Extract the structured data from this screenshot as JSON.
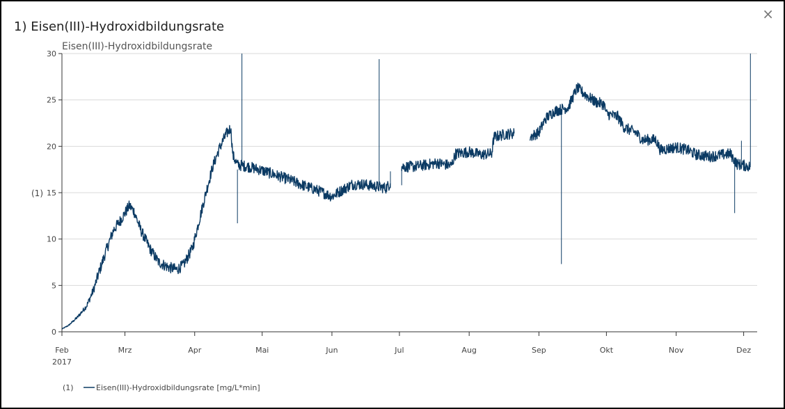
{
  "header": {
    "title": "1) Eisen(III)-Hydroxidbildungsrate",
    "close_glyph": "×"
  },
  "colors": {
    "series": "#0b3a63",
    "grid": "#d9d9d9",
    "axis": "#333333",
    "text": "#444444"
  },
  "chart_data": {
    "type": "line",
    "title": "Eisen(III)-Hydroxidbildungsrate",
    "ylabel": "(1)",
    "ylim": [
      0,
      30
    ],
    "yticks": [
      0,
      5,
      10,
      15,
      20,
      25,
      30
    ],
    "xlim": [
      "2017-02-01",
      "2017-12-07"
    ],
    "xticks": [
      {
        "date": "2017-02-01",
        "label": "Feb",
        "sublabel": "2017"
      },
      {
        "date": "2017-03-01",
        "label": "Mrz"
      },
      {
        "date": "2017-04-01",
        "label": "Apr"
      },
      {
        "date": "2017-05-01",
        "label": "Mai"
      },
      {
        "date": "2017-06-01",
        "label": "Jun"
      },
      {
        "date": "2017-07-01",
        "label": "Jul"
      },
      {
        "date": "2017-08-01",
        "label": "Aug"
      },
      {
        "date": "2017-09-01",
        "label": "Sep"
      },
      {
        "date": "2017-10-01",
        "label": "Okt"
      },
      {
        "date": "2017-11-01",
        "label": "Nov"
      },
      {
        "date": "2017-12-01",
        "label": "Dez"
      }
    ],
    "grid": true,
    "legend": {
      "position": "bottom-left",
      "axis_label": "(1)",
      "entry": "Eisen(III)-Hydroxidbildungsrate [mg/L*min]"
    },
    "series": [
      {
        "name": "Eisen(III)-Hydroxidbildungsrate [mg/L*min]",
        "noise": 0.6,
        "segments": [
          [
            [
              "2017-02-01",
              0.3
            ],
            [
              "2017-02-04",
              0.7
            ],
            [
              "2017-02-08",
              1.6
            ],
            [
              "2017-02-12",
              2.8
            ],
            [
              "2017-02-15",
              4.5
            ],
            [
              "2017-02-18",
              6.8
            ],
            [
              "2017-02-21",
              9.0
            ],
            [
              "2017-02-24",
              11.0
            ],
            [
              "2017-02-27",
              12.0
            ],
            [
              "2017-03-02",
              13.2
            ],
            [
              "2017-03-03",
              13.6
            ],
            [
              "2017-03-05",
              13.0
            ],
            [
              "2017-03-08",
              11.0
            ],
            [
              "2017-03-12",
              9.0
            ],
            [
              "2017-03-16",
              7.5
            ],
            [
              "2017-03-20",
              7.0
            ],
            [
              "2017-03-24",
              6.7
            ],
            [
              "2017-03-27",
              7.2
            ],
            [
              "2017-03-31",
              9.0
            ],
            [
              "2017-04-03",
              12.0
            ],
            [
              "2017-04-06",
              15.0
            ],
            [
              "2017-04-09",
              17.8
            ],
            [
              "2017-04-12",
              19.8
            ],
            [
              "2017-04-15",
              21.3
            ],
            [
              "2017-04-17",
              22.0
            ],
            [
              "2017-04-18",
              19.0
            ],
            [
              "2017-04-20",
              18.0
            ],
            [
              "2017-04-25",
              17.8
            ],
            [
              "2017-05-01",
              17.4
            ],
            [
              "2017-05-07",
              16.9
            ],
            [
              "2017-05-13",
              16.4
            ],
            [
              "2017-05-18",
              15.9
            ],
            [
              "2017-05-25",
              15.3
            ],
            [
              "2017-06-01",
              14.6
            ],
            [
              "2017-06-05",
              15.2
            ],
            [
              "2017-06-10",
              15.9
            ],
            [
              "2017-06-15",
              15.9
            ],
            [
              "2017-06-20",
              15.7
            ],
            [
              "2017-06-25",
              15.5
            ],
            [
              "2017-06-27",
              16.0
            ]
          ],
          [
            [
              "2017-07-02",
              17.8
            ],
            [
              "2017-07-07",
              17.8
            ],
            [
              "2017-07-13",
              18.0
            ],
            [
              "2017-07-18",
              18.2
            ],
            [
              "2017-07-24",
              17.9
            ],
            [
              "2017-07-26",
              19.2
            ],
            [
              "2017-08-01",
              19.4
            ],
            [
              "2017-08-06",
              19.1
            ],
            [
              "2017-08-11",
              19.2
            ],
            [
              "2017-08-12",
              21.0
            ],
            [
              "2017-08-17",
              21.3
            ],
            [
              "2017-08-21",
              21.4
            ]
          ],
          [
            [
              "2017-08-28",
              21.0
            ],
            [
              "2017-09-01",
              21.5
            ],
            [
              "2017-09-04",
              23.0
            ],
            [
              "2017-09-08",
              23.8
            ],
            [
              "2017-09-14",
              24.2
            ],
            [
              "2017-09-18",
              26.3
            ],
            [
              "2017-09-22",
              25.5
            ],
            [
              "2017-09-26",
              24.8
            ],
            [
              "2017-09-30",
              24.5
            ],
            [
              "2017-10-01",
              23.5
            ],
            [
              "2017-10-06",
              23.2
            ],
            [
              "2017-10-09",
              22.0
            ],
            [
              "2017-10-14",
              21.5
            ],
            [
              "2017-10-17",
              20.7
            ],
            [
              "2017-10-23",
              20.7
            ],
            [
              "2017-10-25",
              19.6
            ],
            [
              "2017-11-01",
              19.9
            ],
            [
              "2017-11-06",
              19.6
            ],
            [
              "2017-11-10",
              19.1
            ],
            [
              "2017-11-16",
              18.9
            ],
            [
              "2017-11-22",
              19.1
            ],
            [
              "2017-11-25",
              19.2
            ],
            [
              "2017-11-28",
              18.1
            ],
            [
              "2017-12-04",
              17.8
            ]
          ]
        ],
        "spikes": [
          {
            "date": "2017-04-22",
            "from": 18.0,
            "to": 30.0
          },
          {
            "date": "2017-04-20",
            "from": 17.5,
            "to": 11.7
          },
          {
            "date": "2017-06-22",
            "from": 15.6,
            "to": 29.4
          },
          {
            "date": "2017-06-27",
            "from": 15.5,
            "to": 17.3
          },
          {
            "date": "2017-07-02",
            "from": 17.8,
            "to": 15.8
          },
          {
            "date": "2017-09-11",
            "from": 24.0,
            "to": 7.3
          },
          {
            "date": "2017-11-27",
            "from": 18.8,
            "to": 12.8
          },
          {
            "date": "2017-11-30",
            "from": 17.8,
            "to": 20.6
          },
          {
            "date": "2017-12-04",
            "from": 18.0,
            "to": 30.0
          }
        ]
      }
    ]
  }
}
